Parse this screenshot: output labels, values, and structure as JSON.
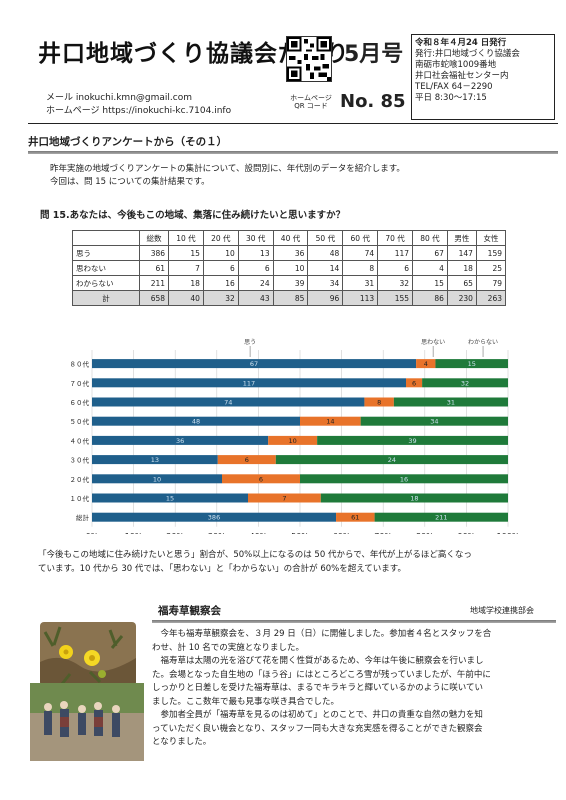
{
  "header": {
    "title": "井口地域づくり協議会だより",
    "month": "5月号",
    "email": "メール  inokuchi.kmn@gmail.com",
    "homepage": "ホームページ  https://inokuchi-kc.7104.info",
    "qr_label_1": "ホームページ",
    "qr_label_2": "QR コード",
    "issue": "No. 85",
    "info": {
      "date": "令和８年４月24 日発行",
      "publisher": "発行:井口地域づくり協議会",
      "address_1": "南砺市蛇喰1009番地",
      "address_2": "井口社会福祉センター内",
      "tel": "TEL/FAX  64－2290",
      "hours": "平日  8:30～17:15"
    }
  },
  "survey": {
    "heading": "井口地域づくりアンケートから（その１）",
    "intro_1": "昨年実施の地域づくりアンケートの集計について、設問別に、年代別のデータを紹介します。",
    "intro_2": "今回は、問 15 についての集計結果です。",
    "question": "問 15.あなたは、今後もこの地域、集落に住み続けたいと思いますか？",
    "table": {
      "headers": [
        "",
        "総数",
        "10 代",
        "20 代",
        "30 代",
        "40 代",
        "50 代",
        "60 代",
        "70 代",
        "80 代",
        "男性",
        "女性"
      ],
      "rows": [
        [
          "思う",
          "386",
          "15",
          "10",
          "13",
          "36",
          "48",
          "74",
          "117",
          "67",
          "147",
          "159"
        ],
        [
          "思わない",
          "61",
          "7",
          "6",
          "6",
          "10",
          "14",
          "8",
          "6",
          "4",
          "18",
          "25"
        ],
        [
          "わからない",
          "211",
          "18",
          "16",
          "24",
          "39",
          "34",
          "31",
          "32",
          "15",
          "65",
          "79"
        ],
        [
          "計",
          "658",
          "40",
          "32",
          "43",
          "85",
          "96",
          "113",
          "155",
          "86",
          "230",
          "263"
        ]
      ]
    },
    "comment_1": "「今後もこの地域に住み続けたいと思う」割合が、50%以上になるのは 50 代からで、年代が上がるほど高くなっ",
    "comment_2": "ています。10 代から 30 代では、「思わない」と「わからない」の合計が 60%を超えています。"
  },
  "chart_data": {
    "type": "bar",
    "orientation": "horizontal",
    "stacked": "percent",
    "categories": [
      "８０代",
      "７０代",
      "６０代",
      "５０代",
      "４０代",
      "３０代",
      "２０代",
      "１０代",
      "総計"
    ],
    "series": [
      {
        "name": "思う",
        "color": "#1f5f8b",
        "values": [
          67,
          117,
          74,
          48,
          36,
          13,
          10,
          15,
          386
        ]
      },
      {
        "name": "思わない",
        "color": "#e8732a",
        "values": [
          4,
          6,
          8,
          14,
          10,
          6,
          6,
          7,
          61
        ]
      },
      {
        "name": "わからない",
        "color": "#1f7a3a",
        "values": [
          15,
          32,
          31,
          34,
          39,
          24,
          16,
          18,
          211
        ]
      }
    ],
    "x_ticks": [
      "0%",
      "10%",
      "20%",
      "30%",
      "40%",
      "50%",
      "60%",
      "70%",
      "80%",
      "90%",
      "100%"
    ],
    "xlim": [
      0,
      100
    ],
    "grid": true,
    "legend": "top"
  },
  "fukujuso": {
    "heading": "福寿草観察会",
    "org": "地域学校連携部会",
    "p1_1": "今年も福寿草観察会を、３月 29 日（日）に開催しました。参加者４名とスタッフを合",
    "p1_2": "わせ、計 10 名での実施となりました。",
    "p2_1": "福寿草は太陽の光を浴びて花を開く性質があるため、今年は午後に観察会を行いまし",
    "p2_2": "た。会場となった自生地の「ほう谷」にはところどころ雪が残っていましたが、午前中に",
    "p2_3": "しっかりと日差しを受けた福寿草は、まるでキラキラと輝いているかのように咲いてい",
    "p2_4": "ました。ここ数年で最も見事な咲き具合でした。",
    "p3_1": "参加者全員が「福寿草を見るのは初めて」とのことで、井口の貴重な自然の魅力を知",
    "p3_2": "っていただく良い機会となり、スタッフ一同も大きな充実感を得ることができた観察会",
    "p3_3": "となりました。"
  }
}
